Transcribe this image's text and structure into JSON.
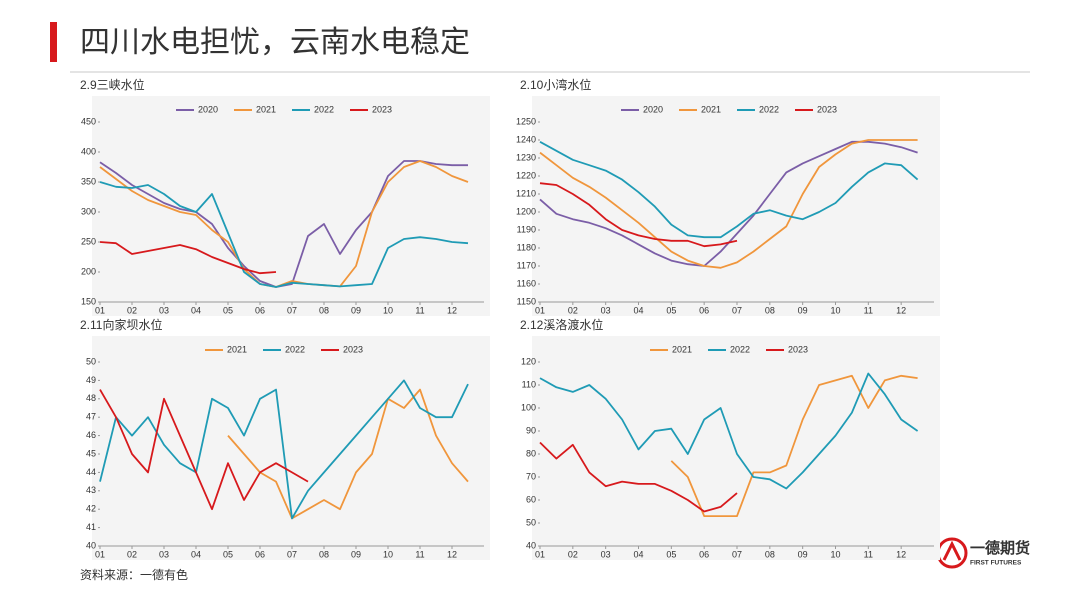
{
  "title": "四川水电担忧，云南水电稳定",
  "source": "资料来源：一德有色",
  "logo": {
    "name": "一德期货",
    "sub": "FIRST FUTURES"
  },
  "chart_data": [
    {
      "type": "line",
      "title": "2.9三峡水位",
      "x": [
        1,
        1.5,
        2,
        2.5,
        3,
        3.5,
        4,
        4.5,
        5,
        5.5,
        6,
        6.5,
        7,
        7.5,
        8,
        8.5,
        9,
        9.5,
        10,
        10.5,
        11,
        11.5,
        12,
        12.5
      ],
      "xlim": [
        1,
        13
      ],
      "xticks": [
        {
          "value": 1,
          "label": "01"
        },
        {
          "value": 2,
          "label": "02"
        },
        {
          "value": 3,
          "label": "03"
        },
        {
          "value": 4,
          "label": "04"
        },
        {
          "value": 5,
          "label": "05"
        },
        {
          "value": 6,
          "label": "06"
        },
        {
          "value": 7,
          "label": "07"
        },
        {
          "value": 8,
          "label": "08"
        },
        {
          "value": 9,
          "label": "09"
        },
        {
          "value": 10,
          "label": "10"
        },
        {
          "value": 11,
          "label": "11"
        },
        {
          "value": 12,
          "label": "12"
        }
      ],
      "ylim": [
        150,
        450
      ],
      "yticks": [
        150,
        200,
        250,
        300,
        350,
        400,
        450
      ],
      "series": [
        {
          "name": "2020",
          "color": "#7b5ea7",
          "values": [
            383,
            365,
            345,
            330,
            315,
            305,
            300,
            280,
            240,
            210,
            185,
            175,
            180,
            260,
            280,
            230,
            270,
            300,
            360,
            385,
            385,
            380,
            378,
            378
          ]
        },
        {
          "name": "2021",
          "color": "#f0963c",
          "values": [
            375,
            355,
            335,
            320,
            310,
            300,
            295,
            270,
            250,
            205,
            180,
            175,
            185,
            180,
            178,
            176,
            210,
            300,
            350,
            375,
            385,
            375,
            360,
            350
          ]
        },
        {
          "name": "2022",
          "color": "#1f9bb5",
          "values": [
            350,
            342,
            340,
            345,
            330,
            310,
            300,
            330,
            265,
            200,
            180,
            175,
            182,
            180,
            178,
            176,
            178,
            180,
            240,
            255,
            258,
            255,
            250,
            248
          ]
        },
        {
          "name": "2023",
          "color": "#d7191c",
          "values": [
            250,
            248,
            230,
            235,
            240,
            245,
            238,
            225,
            215,
            205,
            198,
            200,
            null,
            null,
            null,
            null,
            null,
            null,
            null,
            null,
            null,
            null,
            null,
            null
          ]
        }
      ]
    },
    {
      "type": "line",
      "title": "2.10小湾水位",
      "x": [
        1,
        1.5,
        2,
        2.5,
        3,
        3.5,
        4,
        4.5,
        5,
        5.5,
        6,
        6.5,
        7,
        7.5,
        8,
        8.5,
        9,
        9.5,
        10,
        10.5,
        11,
        11.5,
        12,
        12.5
      ],
      "xlim": [
        1,
        13
      ],
      "xticks": [
        {
          "value": 1,
          "label": "01"
        },
        {
          "value": 2,
          "label": "02"
        },
        {
          "value": 3,
          "label": "03"
        },
        {
          "value": 4,
          "label": "04"
        },
        {
          "value": 5,
          "label": "05"
        },
        {
          "value": 6,
          "label": "06"
        },
        {
          "value": 7,
          "label": "07"
        },
        {
          "value": 8,
          "label": "08"
        },
        {
          "value": 9,
          "label": "09"
        },
        {
          "value": 10,
          "label": "10"
        },
        {
          "value": 11,
          "label": "11"
        },
        {
          "value": 12,
          "label": "12"
        }
      ],
      "ylim": [
        1150,
        1250
      ],
      "yticks": [
        1150,
        1160,
        1170,
        1180,
        1190,
        1200,
        1210,
        1220,
        1230,
        1240,
        1250
      ],
      "series": [
        {
          "name": "2020",
          "color": "#7b5ea7",
          "values": [
            1207,
            1199,
            1196,
            1194,
            1191,
            1187,
            1182,
            1177,
            1173,
            1171,
            1170,
            1178,
            1188,
            1198,
            1210,
            1222,
            1227,
            1231,
            1235,
            1239,
            1239,
            1238,
            1236,
            1233
          ]
        },
        {
          "name": "2021",
          "color": "#f0963c",
          "values": [
            1233,
            1226,
            1219,
            1214,
            1208,
            1201,
            1194,
            1186,
            1178,
            1173,
            1170,
            1169,
            1172,
            1178,
            1185,
            1192,
            1210,
            1225,
            1232,
            1238,
            1240,
            1240,
            1240,
            1240
          ]
        },
        {
          "name": "2022",
          "color": "#1f9bb5",
          "values": [
            1239,
            1234,
            1229,
            1226,
            1223,
            1218,
            1211,
            1203,
            1193,
            1187,
            1186,
            1186,
            1192,
            1199,
            1201,
            1198,
            1196,
            1200,
            1205,
            1214,
            1222,
            1227,
            1226,
            1218
          ]
        },
        {
          "name": "2023",
          "color": "#d7191c",
          "values": [
            1216,
            1215,
            1210,
            1204,
            1196,
            1190,
            1187,
            1185,
            1184,
            1184,
            1181,
            1182,
            1184,
            null,
            null,
            null,
            null,
            null,
            null,
            null,
            null,
            null,
            null,
            null
          ]
        }
      ]
    },
    {
      "type": "line",
      "title": "2.11向家坝水位",
      "x": [
        1,
        1.5,
        2,
        2.5,
        3,
        3.5,
        4,
        4.5,
        5,
        5.5,
        6,
        6.5,
        7,
        7.5,
        8,
        8.5,
        9,
        9.5,
        10,
        10.5,
        11,
        11.5,
        12,
        12.5
      ],
      "xlim": [
        1,
        13
      ],
      "xticks": [
        {
          "value": 1,
          "label": "01"
        },
        {
          "value": 2,
          "label": "02"
        },
        {
          "value": 3,
          "label": "03"
        },
        {
          "value": 4,
          "label": "04"
        },
        {
          "value": 5,
          "label": "05"
        },
        {
          "value": 6,
          "label": "06"
        },
        {
          "value": 7,
          "label": "07"
        },
        {
          "value": 8,
          "label": "08"
        },
        {
          "value": 9,
          "label": "09"
        },
        {
          "value": 10,
          "label": "10"
        },
        {
          "value": 11,
          "label": "11"
        },
        {
          "value": 12,
          "label": "12"
        }
      ],
      "ylim": [
        40,
        50
      ],
      "yticks": [
        40,
        41,
        42,
        43,
        44,
        45,
        46,
        47,
        48,
        49,
        50
      ],
      "series": [
        {
          "name": "2021",
          "color": "#f0963c",
          "values": [
            null,
            null,
            null,
            null,
            null,
            null,
            null,
            null,
            46,
            45,
            44,
            43.5,
            41.5,
            42,
            42.5,
            42,
            44,
            45,
            48,
            47.5,
            48.5,
            46,
            44.5,
            43.5
          ]
        },
        {
          "name": "2022",
          "color": "#1f9bb5",
          "values": [
            43.5,
            47,
            46,
            47,
            45.5,
            44.5,
            44,
            48,
            47.5,
            46,
            48,
            48.5,
            41.5,
            43,
            44,
            45,
            46,
            47,
            48,
            49,
            47.5,
            47,
            47,
            48.8
          ]
        },
        {
          "name": "2023",
          "color": "#d7191c",
          "values": [
            48.5,
            47,
            45,
            44,
            48,
            46,
            44,
            42,
            44.5,
            42.5,
            44,
            44.5,
            44,
            43.5,
            null,
            null,
            null,
            null,
            null,
            null,
            null,
            null,
            null,
            null
          ]
        }
      ]
    },
    {
      "type": "line",
      "title": "2.12溪洛渡水位",
      "x": [
        1,
        1.5,
        2,
        2.5,
        3,
        3.5,
        4,
        4.5,
        5,
        5.5,
        6,
        6.5,
        7,
        7.5,
        8,
        8.5,
        9,
        9.5,
        10,
        10.5,
        11,
        11.5,
        12,
        12.5
      ],
      "xlim": [
        1,
        13
      ],
      "xticks": [
        {
          "value": 1,
          "label": "01"
        },
        {
          "value": 2,
          "label": "02"
        },
        {
          "value": 3,
          "label": "03"
        },
        {
          "value": 4,
          "label": "04"
        },
        {
          "value": 5,
          "label": "05"
        },
        {
          "value": 6,
          "label": "06"
        },
        {
          "value": 7,
          "label": "07"
        },
        {
          "value": 8,
          "label": "08"
        },
        {
          "value": 9,
          "label": "09"
        },
        {
          "value": 10,
          "label": "10"
        },
        {
          "value": 11,
          "label": "11"
        },
        {
          "value": 12,
          "label": "12"
        }
      ],
      "ylim": [
        40,
        120
      ],
      "yticks": [
        40,
        50,
        60,
        70,
        80,
        90,
        100,
        110,
        120
      ],
      "series": [
        {
          "name": "2021",
          "color": "#f0963c",
          "values": [
            null,
            null,
            null,
            null,
            null,
            null,
            null,
            null,
            77,
            70,
            53,
            53,
            53,
            72,
            72,
            75,
            95,
            110,
            112,
            114,
            100,
            112,
            114,
            113
          ]
        },
        {
          "name": "2022",
          "color": "#1f9bb5",
          "values": [
            113,
            109,
            107,
            110,
            104,
            95,
            82,
            90,
            91,
            80,
            95,
            100,
            80,
            70,
            69,
            65,
            72,
            80,
            88,
            98,
            115,
            106,
            95,
            90
          ]
        },
        {
          "name": "2023",
          "color": "#d7191c",
          "values": [
            85,
            78,
            84,
            72,
            66,
            68,
            67,
            67,
            64,
            60,
            55,
            57,
            63,
            null,
            null,
            null,
            null,
            null,
            null,
            null,
            null,
            null,
            null,
            null
          ]
        }
      ]
    }
  ]
}
